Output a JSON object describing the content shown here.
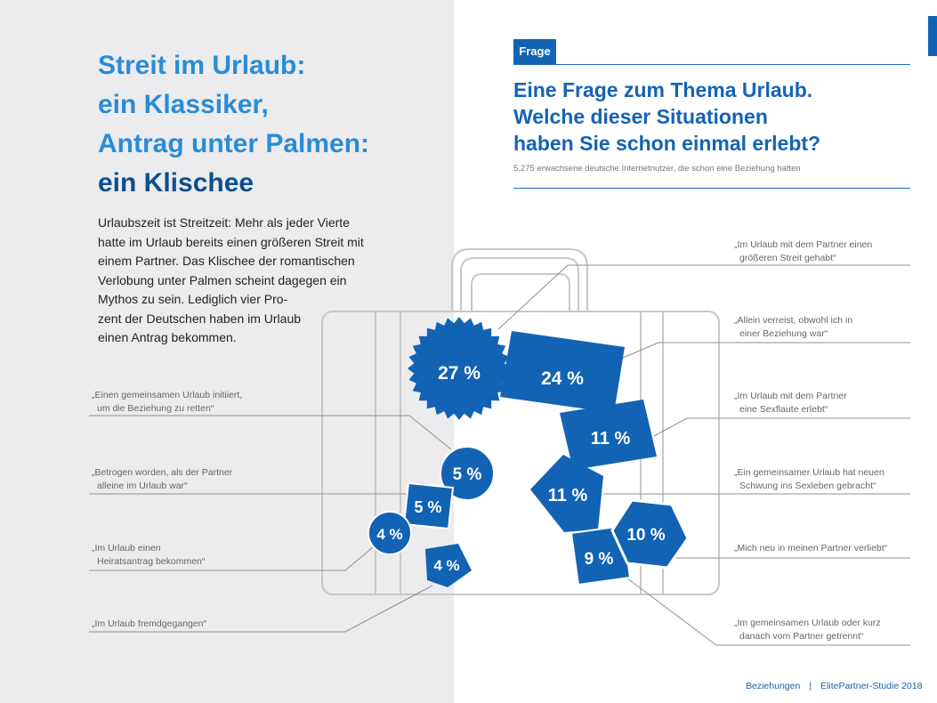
{
  "headline": {
    "line1": "Streit im Urlaub:",
    "line2": "ein Klassiker,",
    "line3": "Antrag unter Palmen:",
    "line4": "ein Klischee"
  },
  "body": {
    "lines": [
      "Urlaubszeit ist Streitzeit: Mehr als jeder Vierte",
      "hatte im Urlaub bereits einen größeren Streit mit",
      "einem Partner. Das Klischee der romantischen",
      "Verlobung unter Palmen scheint dagegen ein",
      "Mythos zu sein. Lediglich vier Pro-",
      "zent der Deutschen haben im Urlaub",
      "einen Antrag bekommen."
    ]
  },
  "tag": "Frage",
  "question": {
    "line1": "Eine Frage zum Thema Urlaub.",
    "line2": "Welche dieser Situationen",
    "line3": "haben Sie schon einmal erlebt?"
  },
  "subtitle": "5.275 erwachsene deutsche Internetnutzer, die schon eine Beziehung hatten",
  "colors": {
    "primary": "#1263b4",
    "light": "#2a8cd6",
    "background_left": "#ececee",
    "outline": "#c8c8c8"
  },
  "items": [
    {
      "value": "27 %",
      "label1": "„Im Urlaub mit dem Partner einen",
      "label2": "größeren Streit gehabt“",
      "shape": "starburst"
    },
    {
      "value": "24 %",
      "label1": "„Allein verreist, obwohl ich in",
      "label2": "einer Beziehung war“",
      "shape": "tilted-rectangle"
    },
    {
      "value": "11 %",
      "label1": "„Im Urlaub mit dem Partner",
      "label2": "eine Sexflaute erlebt“",
      "shape": "tilted-rectangle"
    },
    {
      "value": "11 %",
      "label1": "„Ein gemeinsamer Urlaub hat neuen",
      "label2": "Schwung ins Sexleben gebracht“",
      "shape": "pentagon"
    },
    {
      "value": "10 %",
      "label1": "„Mich neu in meinen Partner verliebt“",
      "label2": "",
      "shape": "hexagon"
    },
    {
      "value": "9 %",
      "label1": "„Im gemeinsamen Urlaub oder kurz",
      "label2": "danach vom Partner getrennt“",
      "shape": "tilted-square"
    },
    {
      "value": "5 %",
      "label1": "„Einen gemeinsamen Urlaub initiiert,",
      "label2": "um die Beziehung zu retten“",
      "shape": "circle"
    },
    {
      "value": "5 %",
      "label1": "„Betrogen worden, als der Partner",
      "label2": "alleine im Urlaub war“",
      "shape": "square"
    },
    {
      "value": "4 %",
      "label1": "„Im Urlaub einen",
      "label2": "Heiratsantrag bekommen“",
      "shape": "circle"
    },
    {
      "value": "4 %",
      "label1": "„Im Urlaub fremdgegangen“",
      "label2": "",
      "shape": "pentagon"
    }
  ],
  "footer": {
    "section": "Beziehungen",
    "separator": "|",
    "study": "ElitePartner-Studie 2018"
  }
}
